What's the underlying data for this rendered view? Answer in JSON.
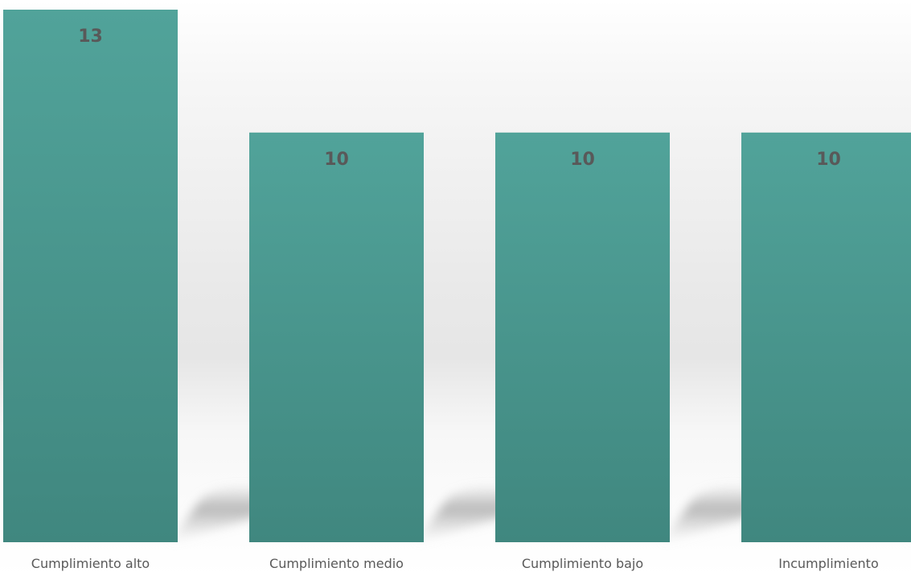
{
  "chart_data": {
    "type": "bar",
    "categories": [
      "Cumplimiento alto",
      "Cumplimiento medio",
      "Cumplimiento bajo",
      "Incumplimiento"
    ],
    "values": [
      13,
      10,
      10,
      10
    ],
    "title": "",
    "xlabel": "",
    "ylabel": "",
    "ylim": [
      0,
      13
    ],
    "grid": false,
    "data_labels": true,
    "colors": {
      "bar_top": "#51a39a",
      "bar_bottom": "#40877f",
      "label_text": "#595959",
      "shadow": "#b8b8b8"
    }
  }
}
